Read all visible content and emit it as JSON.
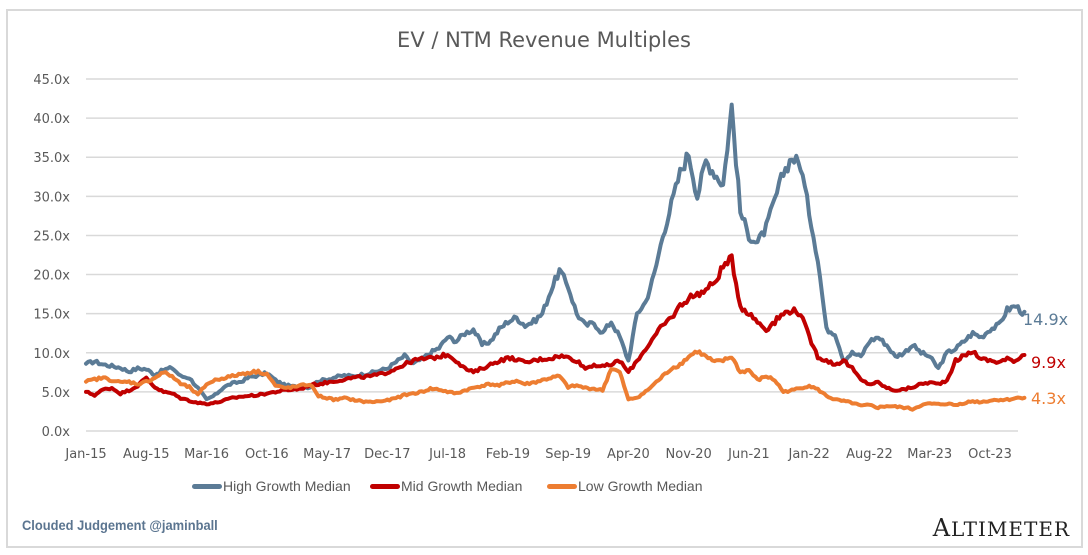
{
  "chart_data": {
    "type": "line",
    "title": "EV / NTM Revenue Multiples",
    "xlabel": "",
    "ylabel": "",
    "ylim": [
      0,
      45
    ],
    "yticks": [
      "0.0x",
      "5.0x",
      "10.0x",
      "15.0x",
      "20.0x",
      "25.0x",
      "30.0x",
      "35.0x",
      "40.0x",
      "45.0x"
    ],
    "ytick_values": [
      0,
      5,
      10,
      15,
      20,
      25,
      30,
      35,
      40,
      45
    ],
    "xticks": [
      "Jan-15",
      "Aug-15",
      "Mar-16",
      "Oct-16",
      "May-17",
      "Dec-17",
      "Jul-18",
      "Feb-19",
      "Sep-19",
      "Apr-20",
      "Nov-20",
      "Jun-21",
      "Jan-22",
      "Aug-22",
      "Mar-23",
      "Oct-23"
    ],
    "xtick_month_index": [
      0,
      7,
      14,
      21,
      28,
      35,
      42,
      49,
      56,
      63,
      70,
      77,
      84,
      91,
      98,
      105
    ],
    "x_start": "Jan-15",
    "x_step": "1 month",
    "grid": "horizontal",
    "legend_position": "bottom",
    "series": [
      {
        "name": "High Growth Median",
        "color": "#5b7b96",
        "end_label": "14.9x",
        "values": [
          8.6,
          8.9,
          8.5,
          8.3,
          8.1,
          7.6,
          8.0,
          7.9,
          7.2,
          7.8,
          8.1,
          7.0,
          6.8,
          5.5,
          4.0,
          4.6,
          5.6,
          6.1,
          6.3,
          6.9,
          7.1,
          7.4,
          6.5,
          5.9,
          5.7,
          5.6,
          5.6,
          6.4,
          6.6,
          6.9,
          7.1,
          7.0,
          7.2,
          7.4,
          7.7,
          8.0,
          8.8,
          9.6,
          8.6,
          9.2,
          10.0,
          10.6,
          12.0,
          11.5,
          12.5,
          13.0,
          11.0,
          11.5,
          13.0,
          14.0,
          14.5,
          13.5,
          14.0,
          15.0,
          18.0,
          20.5,
          18.5,
          15.0,
          13.5,
          13.8,
          12.5,
          14.0,
          12.0,
          9.0,
          15.0,
          16.5,
          20.0,
          25.0,
          29.0,
          33.0,
          35.5,
          30.0,
          34.5,
          33.0,
          31.5,
          41.5,
          28.0,
          25.0,
          24.0,
          26.0,
          29.5,
          33.0,
          35.0,
          34.0,
          28.0,
          22.0,
          13.0,
          12.5,
          9.0,
          10.0,
          9.5,
          11.5,
          12.0,
          11.0,
          9.5,
          10.0,
          11.0,
          10.0,
          9.5,
          8.0,
          10.0,
          10.5,
          11.5,
          12.5,
          12.0,
          13.0,
          13.5,
          15.5,
          16.0,
          14.9
        ]
      },
      {
        "name": "Mid Growth Median",
        "color": "#c00000",
        "end_label": "9.9x",
        "values": [
          5.0,
          4.6,
          5.3,
          5.5,
          4.8,
          5.2,
          5.8,
          6.8,
          5.6,
          5.0,
          4.8,
          4.2,
          3.9,
          3.6,
          3.5,
          3.6,
          3.9,
          4.2,
          4.4,
          4.5,
          4.6,
          4.8,
          5.0,
          5.2,
          5.3,
          5.4,
          5.9,
          6.0,
          6.2,
          6.4,
          6.6,
          6.8,
          6.9,
          7.0,
          7.2,
          7.5,
          8.0,
          8.5,
          9.0,
          9.2,
          9.3,
          9.5,
          9.8,
          9.0,
          8.0,
          7.5,
          8.0,
          8.5,
          9.0,
          9.3,
          9.2,
          8.7,
          9.0,
          9.2,
          9.3,
          9.6,
          9.4,
          9.0,
          8.0,
          8.5,
          8.2,
          8.5,
          9.0,
          7.5,
          9.0,
          10.5,
          12.0,
          13.5,
          14.5,
          16.0,
          17.0,
          17.5,
          18.0,
          19.0,
          21.0,
          22.0,
          16.0,
          15.0,
          14.0,
          13.0,
          14.0,
          15.0,
          15.5,
          15.0,
          12.0,
          9.5,
          9.0,
          8.5,
          9.0,
          8.0,
          6.5,
          6.0,
          6.2,
          5.5,
          5.2,
          5.3,
          5.6,
          6.0,
          6.2,
          6.0,
          6.5,
          9.0,
          9.6,
          10.2,
          9.2,
          9.0,
          8.8,
          9.2,
          9.0,
          9.9
        ]
      },
      {
        "name": "Low Growth Median",
        "color": "#ed7d31",
        "end_label": "4.3x",
        "values": [
          6.3,
          6.6,
          6.8,
          6.5,
          6.2,
          6.3,
          6.0,
          6.3,
          6.8,
          7.5,
          7.0,
          6.0,
          5.6,
          4.6,
          6.0,
          6.5,
          6.8,
          7.0,
          7.3,
          7.5,
          7.6,
          7.3,
          5.8,
          5.5,
          5.6,
          5.8,
          6.0,
          4.5,
          4.2,
          4.0,
          4.2,
          4.0,
          3.8,
          3.7,
          3.8,
          3.9,
          4.2,
          4.6,
          4.8,
          5.0,
          5.4,
          5.3,
          5.0,
          4.8,
          5.2,
          5.5,
          5.8,
          6.0,
          5.8,
          6.2,
          6.4,
          6.0,
          6.2,
          6.5,
          6.8,
          7.0,
          5.6,
          5.8,
          5.5,
          5.4,
          5.2,
          8.0,
          7.5,
          4.0,
          4.3,
          5.0,
          6.0,
          7.0,
          8.0,
          8.5,
          9.5,
          10.2,
          9.5,
          8.8,
          9.0,
          9.5,
          7.5,
          7.8,
          6.5,
          7.0,
          6.5,
          5.0,
          5.2,
          5.5,
          5.8,
          5.3,
          4.5,
          4.0,
          3.8,
          3.6,
          3.2,
          3.3,
          3.0,
          3.2,
          3.1,
          3.0,
          2.8,
          3.3,
          3.5,
          3.4,
          3.5,
          3.3,
          3.6,
          3.8,
          3.7,
          3.9,
          4.0,
          4.0,
          4.2,
          4.3
        ]
      }
    ]
  },
  "footer": {
    "attribution": "Clouded Judgement @jaminball",
    "brand": "ALTIMETER"
  }
}
